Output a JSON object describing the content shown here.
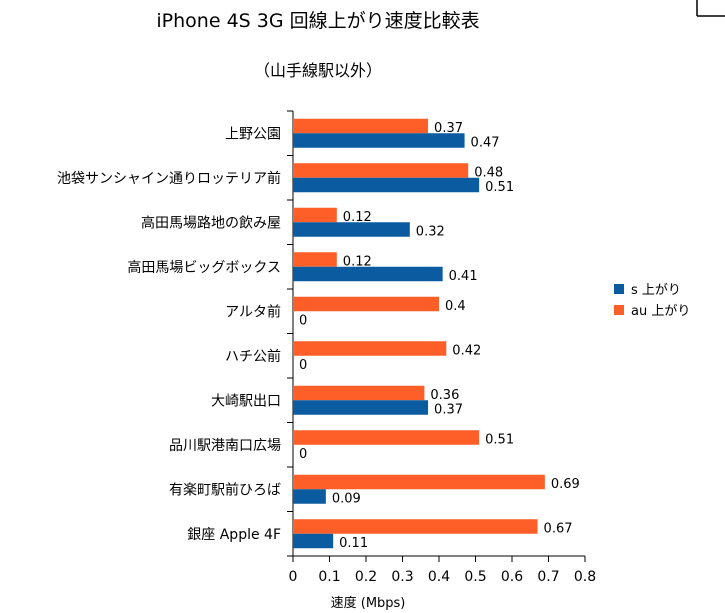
{
  "chart_data": {
    "type": "bar",
    "orientation": "horizontal",
    "title": "iPhone 4S 3G 回線上がり速度比較表",
    "subtitle": "（山手線駅以外）",
    "categories": [
      "上野公園",
      "池袋サンシャイン通りロッテリア前",
      "高田馬場路地の飲み屋",
      "高田馬場ビッグボックス",
      "アルタ前",
      "ハチ公前",
      "大崎駅出口",
      "品川駅港南口広場",
      "有楽町駅前ひろば",
      "銀座 Apple 4F"
    ],
    "series": [
      {
        "name": "au 上がり",
        "color": "#fe5f29",
        "values": [
          0.37,
          0.48,
          0.12,
          0.12,
          0.4,
          0.42,
          0.36,
          0.51,
          0.69,
          0.67
        ]
      },
      {
        "name": "s 上がり",
        "color": "#0a5ba0",
        "values": [
          0.47,
          0.51,
          0.32,
          0.41,
          0,
          0,
          0.37,
          0,
          0.09,
          0.11
        ]
      }
    ],
    "legend_order": [
      1,
      0
    ],
    "xlabel": "速度 (Mbps)",
    "ylabel": "",
    "xlim": [
      0,
      0.8
    ],
    "xticks": [
      0,
      0.1,
      0.2,
      0.3,
      0.4,
      0.5,
      0.6,
      0.7,
      0.8
    ],
    "grid": false,
    "legend_position": "right"
  }
}
